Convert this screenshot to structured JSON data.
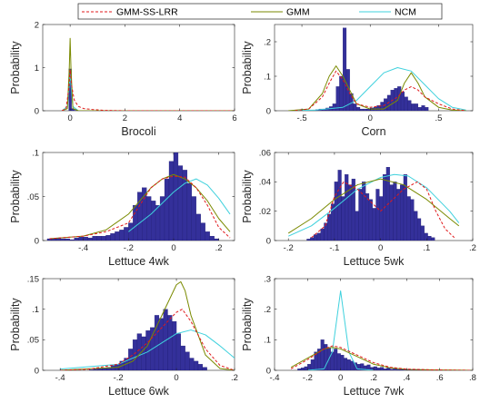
{
  "legend": {
    "entries": [
      {
        "label": "GMM-SS-LRR",
        "color": "#e0191b",
        "dash": true
      },
      {
        "label": "GMM",
        "color": "#7a8a00",
        "dash": false
      },
      {
        "label": "NCM",
        "color": "#3fd1dd",
        "dash": false
      }
    ]
  },
  "colors": {
    "bar_fill": "#34309a",
    "bar_edge": "#1a1870"
  },
  "chart_data": [
    {
      "type": "bar",
      "title": "",
      "xlabel": "Brocoli",
      "ylabel": "Probability",
      "xlim": [
        -1,
        6
      ],
      "ylim": [
        0,
        2
      ],
      "xticks": [
        0,
        2,
        4,
        6
      ],
      "yticks": [
        0,
        1,
        2
      ],
      "bins": {
        "start": -0.05,
        "width": 0.1,
        "values": [
          0.97,
          0.05,
          0.01
        ]
      },
      "series": [
        {
          "name": "GMM-SS-LRR",
          "x": [
            -0.3,
            -0.15,
            -0.05,
            0,
            0.05,
            0.15,
            0.3,
            0.5,
            0.8,
            1.2,
            2,
            4,
            6
          ],
          "y": [
            0,
            0.05,
            0.5,
            0.95,
            0.6,
            0.25,
            0.1,
            0.05,
            0.03,
            0.01,
            0,
            0,
            0
          ]
        },
        {
          "name": "GMM",
          "x": [
            -0.3,
            -0.1,
            -0.03,
            0,
            0.03,
            0.1,
            0.3,
            6
          ],
          "y": [
            0,
            0.05,
            1.0,
            1.68,
            1.0,
            0.05,
            0,
            0
          ]
        },
        {
          "name": "NCM",
          "x": [
            -0.3,
            -0.1,
            -0.03,
            0,
            0.03,
            0.1,
            0.3,
            6
          ],
          "y": [
            0,
            0.1,
            0.6,
            0.85,
            0.6,
            0.1,
            0,
            0
          ]
        }
      ]
    },
    {
      "type": "bar",
      "title": "",
      "xlabel": "Corn",
      "ylabel": "Probability",
      "xlim": [
        -0.7,
        0.75
      ],
      "ylim": [
        0,
        0.25
      ],
      "xticks": [
        -0.5,
        0,
        0.5
      ],
      "yticks": [
        0,
        0.1,
        0.2
      ],
      "bins": {
        "start": -0.4,
        "width": 0.025,
        "values": [
          0.003,
          0.005,
          0.005,
          0.008,
          0.012,
          0.02,
          0.07,
          0.1,
          0.24,
          0.12,
          0.05,
          0.02,
          0.01,
          0.005,
          0.005,
          0.005,
          0.008,
          0.01,
          0.015,
          0.025,
          0.035,
          0.045,
          0.06,
          0.065,
          0.07,
          0.055,
          0.04,
          0.03,
          0.02,
          0.02,
          0.01,
          0.015,
          0.01
        ]
      },
      "series": [
        {
          "name": "GMM-SS-LRR",
          "x": [
            -0.55,
            -0.45,
            -0.35,
            -0.3,
            -0.25,
            -0.2,
            -0.15,
            -0.1,
            0,
            0.1,
            0.2,
            0.25,
            0.3,
            0.35,
            0.4,
            0.5,
            0.6,
            0.7
          ],
          "y": [
            0,
            0.005,
            0.04,
            0.08,
            0.115,
            0.09,
            0.05,
            0.02,
            0.01,
            0.015,
            0.04,
            0.06,
            0.07,
            0.06,
            0.04,
            0.02,
            0.005,
            0
          ]
        },
        {
          "name": "GMM",
          "x": [
            -0.6,
            -0.45,
            -0.35,
            -0.3,
            -0.25,
            -0.2,
            -0.1,
            0,
            0.1,
            0.2,
            0.25,
            0.3,
            0.35,
            0.4,
            0.5,
            0.6,
            0.7
          ],
          "y": [
            0,
            0.005,
            0.05,
            0.1,
            0.13,
            0.1,
            0.02,
            0.005,
            0.005,
            0.03,
            0.08,
            0.11,
            0.08,
            0.04,
            0.01,
            0.002,
            0
          ]
        },
        {
          "name": "NCM",
          "x": [
            -0.6,
            -0.4,
            -0.2,
            -0.1,
            0,
            0.1,
            0.2,
            0.3,
            0.4,
            0.5,
            0.6,
            0.7
          ],
          "y": [
            0,
            0.002,
            0.01,
            0.03,
            0.07,
            0.11,
            0.125,
            0.115,
            0.075,
            0.035,
            0.01,
            0.002
          ]
        }
      ]
    },
    {
      "type": "bar",
      "title": "",
      "xlabel": "Lettuce 4wk",
      "ylabel": "Probability",
      "xlim": [
        -0.58,
        0.27
      ],
      "ylim": [
        0,
        0.1
      ],
      "xticks": [
        -0.4,
        -0.2,
        0,
        0.2
      ],
      "yticks": [
        0,
        0.05,
        0.1
      ],
      "bins": {
        "start": -0.56,
        "width": 0.02,
        "values": [
          0.002,
          0.002,
          0.003,
          0.002,
          0.002,
          0.001,
          0.003,
          0.004,
          0.004,
          0.003,
          0.005,
          0.005,
          0.005,
          0.006,
          0.008,
          0.01,
          0.012,
          0.015,
          0.02,
          0.04,
          0.055,
          0.06,
          0.05,
          0.045,
          0.04,
          0.05,
          0.07,
          0.09,
          0.1,
          0.085,
          0.08,
          0.065,
          0.05,
          0.03,
          0.02,
          0.01,
          0.005,
          0.002
        ]
      },
      "series": [
        {
          "name": "GMM-SS-LRR",
          "x": [
            -0.55,
            -0.4,
            -0.3,
            -0.2,
            -0.15,
            -0.1,
            -0.05,
            0,
            0.05,
            0.1,
            0.15,
            0.2,
            0.25
          ],
          "y": [
            0.002,
            0.005,
            0.01,
            0.02,
            0.04,
            0.06,
            0.07,
            0.073,
            0.072,
            0.06,
            0.04,
            0.015,
            0.003
          ]
        },
        {
          "name": "GMM",
          "x": [
            -0.55,
            -0.4,
            -0.3,
            -0.2,
            -0.15,
            -0.1,
            -0.05,
            0,
            0.05,
            0.1,
            0.15,
            0.2,
            0.25
          ],
          "y": [
            0.002,
            0.005,
            0.012,
            0.03,
            0.045,
            0.06,
            0.07,
            0.075,
            0.07,
            0.06,
            0.045,
            0.025,
            0.01
          ]
        },
        {
          "name": "NCM",
          "x": [
            -0.2,
            -0.1,
            0,
            0.05,
            0.1,
            0.15,
            0.2,
            0.25
          ],
          "y": [
            0.01,
            0.03,
            0.055,
            0.065,
            0.07,
            0.063,
            0.048,
            0.03
          ]
        }
      ]
    },
    {
      "type": "bar",
      "title": "",
      "xlabel": "Lettuce 5wk",
      "ylabel": "Probability",
      "xlim": [
        -0.23,
        0.2
      ],
      "ylim": [
        0,
        0.06
      ],
      "xticks": [
        -0.2,
        -0.1,
        0,
        0.1,
        0.2
      ],
      "yticks": [
        0,
        0.02,
        0.04,
        0.06
      ],
      "bins": {
        "start": -0.16,
        "width": 0.0075,
        "values": [
          0.001,
          0.002,
          0.004,
          0.005,
          0.008,
          0.012,
          0.018,
          0.025,
          0.04,
          0.048,
          0.03,
          0.045,
          0.038,
          0.042,
          0.02,
          0.035,
          0.04,
          0.032,
          0.028,
          0.022,
          0.035,
          0.03,
          0.045,
          0.05,
          0.038,
          0.04,
          0.035,
          0.038,
          0.045,
          0.03,
          0.028,
          0.02,
          0.015,
          0.01,
          0.005,
          0.003,
          0.002
        ]
      },
      "series": [
        {
          "name": "GMM-SS-LRR",
          "x": [
            -0.15,
            -0.12,
            -0.1,
            -0.08,
            -0.05,
            0,
            0.05,
            0.08,
            0.1,
            0.12,
            0.14,
            0.16
          ],
          "y": [
            0.002,
            0.01,
            0.03,
            0.04,
            0.035,
            0.02,
            0.035,
            0.04,
            0.035,
            0.02,
            0.008,
            0.002
          ]
        },
        {
          "name": "GMM",
          "x": [
            -0.2,
            -0.15,
            -0.1,
            -0.05,
            0,
            0.05,
            0.1,
            0.15,
            0.17
          ],
          "y": [
            0.005,
            0.015,
            0.028,
            0.038,
            0.042,
            0.038,
            0.028,
            0.015,
            0.01
          ]
        },
        {
          "name": "NCM",
          "x": [
            -0.2,
            -0.15,
            -0.1,
            -0.05,
            0,
            0.03,
            0.06,
            0.1,
            0.15,
            0.17
          ],
          "y": [
            0.003,
            0.01,
            0.022,
            0.035,
            0.043,
            0.045,
            0.044,
            0.036,
            0.02,
            0.012
          ]
        }
      ]
    },
    {
      "type": "bar",
      "title": "",
      "xlabel": "Lettuce 6wk",
      "ylabel": "Probability",
      "xlim": [
        -0.46,
        0.2
      ],
      "ylim": [
        0,
        0.15
      ],
      "xticks": [
        -0.4,
        -0.2,
        0,
        0.2
      ],
      "yticks": [
        0,
        0.05,
        0.1,
        0.15
      ],
      "bins": {
        "start": -0.3,
        "width": 0.015,
        "values": [
          0.001,
          0.002,
          0.003,
          0.004,
          0.005,
          0.008,
          0.01,
          0.015,
          0.02,
          0.035,
          0.05,
          0.06,
          0.055,
          0.065,
          0.07,
          0.09,
          0.085,
          0.1,
          0.09,
          0.08,
          0.06,
          0.04,
          0.03,
          0.02,
          0.015,
          0.01,
          0.005
        ]
      },
      "series": [
        {
          "name": "GMM-SS-LRR",
          "x": [
            -0.4,
            -0.3,
            -0.2,
            -0.15,
            -0.1,
            -0.05,
            0,
            0.02,
            0.05,
            0.1,
            0.15,
            0.2
          ],
          "y": [
            0,
            0.002,
            0.01,
            0.025,
            0.045,
            0.07,
            0.095,
            0.1,
            0.08,
            0.035,
            0.008,
            0
          ]
        },
        {
          "name": "GMM",
          "x": [
            -0.4,
            -0.2,
            -0.15,
            -0.1,
            -0.05,
            0,
            0.015,
            0.03,
            0.05,
            0.1,
            0.15,
            0.2
          ],
          "y": [
            0,
            0.005,
            0.015,
            0.04,
            0.09,
            0.14,
            0.145,
            0.13,
            0.09,
            0.025,
            0.003,
            0
          ]
        },
        {
          "name": "NCM",
          "x": [
            -0.4,
            -0.2,
            -0.1,
            -0.05,
            0,
            0.05,
            0.1,
            0.15,
            0.2
          ],
          "y": [
            0.002,
            0.01,
            0.03,
            0.045,
            0.06,
            0.066,
            0.058,
            0.04,
            0.02
          ]
        }
      ]
    },
    {
      "type": "bar",
      "title": "",
      "xlabel": "Lettuce 7wk",
      "ylabel": "Probability",
      "xlim": [
        -0.4,
        0.8
      ],
      "ylim": [
        0,
        0.3
      ],
      "xticks": [
        -0.4,
        -0.2,
        0,
        0.2,
        0.4,
        0.6,
        0.8
      ],
      "yticks": [
        0,
        0.1,
        0.2,
        0.3
      ],
      "bins": {
        "start": -0.26,
        "width": 0.02,
        "values": [
          0.005,
          0.008,
          0.012,
          0.02,
          0.035,
          0.06,
          0.07,
          0.1,
          0.085,
          0.075,
          0.06,
          0.07,
          0.055,
          0.05,
          0.04,
          0.035,
          0.03,
          0.025,
          0.02,
          0.022,
          0.015,
          0.018,
          0.01,
          0.012,
          0.008,
          0.01,
          0.005,
          0.008,
          0.004,
          0.005,
          0.003,
          0.003,
          0.002,
          0.002,
          0.002,
          0.001,
          0.001,
          0.001,
          0.001
        ]
      },
      "series": [
        {
          "name": "GMM-SS-LRR",
          "x": [
            -0.3,
            -0.2,
            -0.1,
            -0.05,
            0,
            0.1,
            0.2,
            0.3,
            0.4,
            0.6,
            0.8
          ],
          "y": [
            0.005,
            0.035,
            0.07,
            0.08,
            0.075,
            0.05,
            0.025,
            0.01,
            0.004,
            0.001,
            0
          ]
        },
        {
          "name": "GMM",
          "x": [
            -0.3,
            -0.2,
            -0.1,
            -0.05,
            0,
            0.1,
            0.2,
            0.3,
            0.4,
            0.6,
            0.8
          ],
          "y": [
            0.01,
            0.04,
            0.07,
            0.075,
            0.07,
            0.045,
            0.02,
            0.008,
            0.003,
            0.001,
            0
          ]
        },
        {
          "name": "NCM",
          "x": [
            -0.2,
            -0.1,
            -0.05,
            -0.02,
            0,
            0.02,
            0.05,
            0.1,
            0.2
          ],
          "y": [
            0,
            0.005,
            0.06,
            0.18,
            0.26,
            0.18,
            0.06,
            0.005,
            0
          ]
        }
      ]
    }
  ]
}
